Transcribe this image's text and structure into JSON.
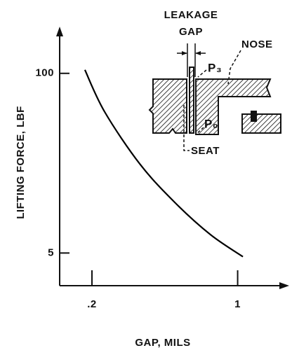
{
  "chart_data": {
    "type": "line",
    "xlabel": "GAP, MILS",
    "ylabel": "LIFTING FORCE, LBF",
    "x": [
      0.185,
      0.23,
      0.34,
      0.5,
      0.74,
      1.06
    ],
    "values": [
      106,
      52.7,
      22,
      11.6,
      6.8,
      4.7
    ],
    "color": "#000000",
    "xscale": "log",
    "yscale": "log",
    "xlim": [
      0.14,
      1.74
    ],
    "ylim": [
      2.9,
      213
    ],
    "xticks": [
      {
        "value": 0.2,
        "label": ".2"
      },
      1
    ],
    "yticks": [
      5,
      100
    ],
    "annotations": [
      "LEAKAGE",
      "GAP",
      "P₃",
      "NOSE",
      "P₀",
      "SEAT"
    ]
  }
}
